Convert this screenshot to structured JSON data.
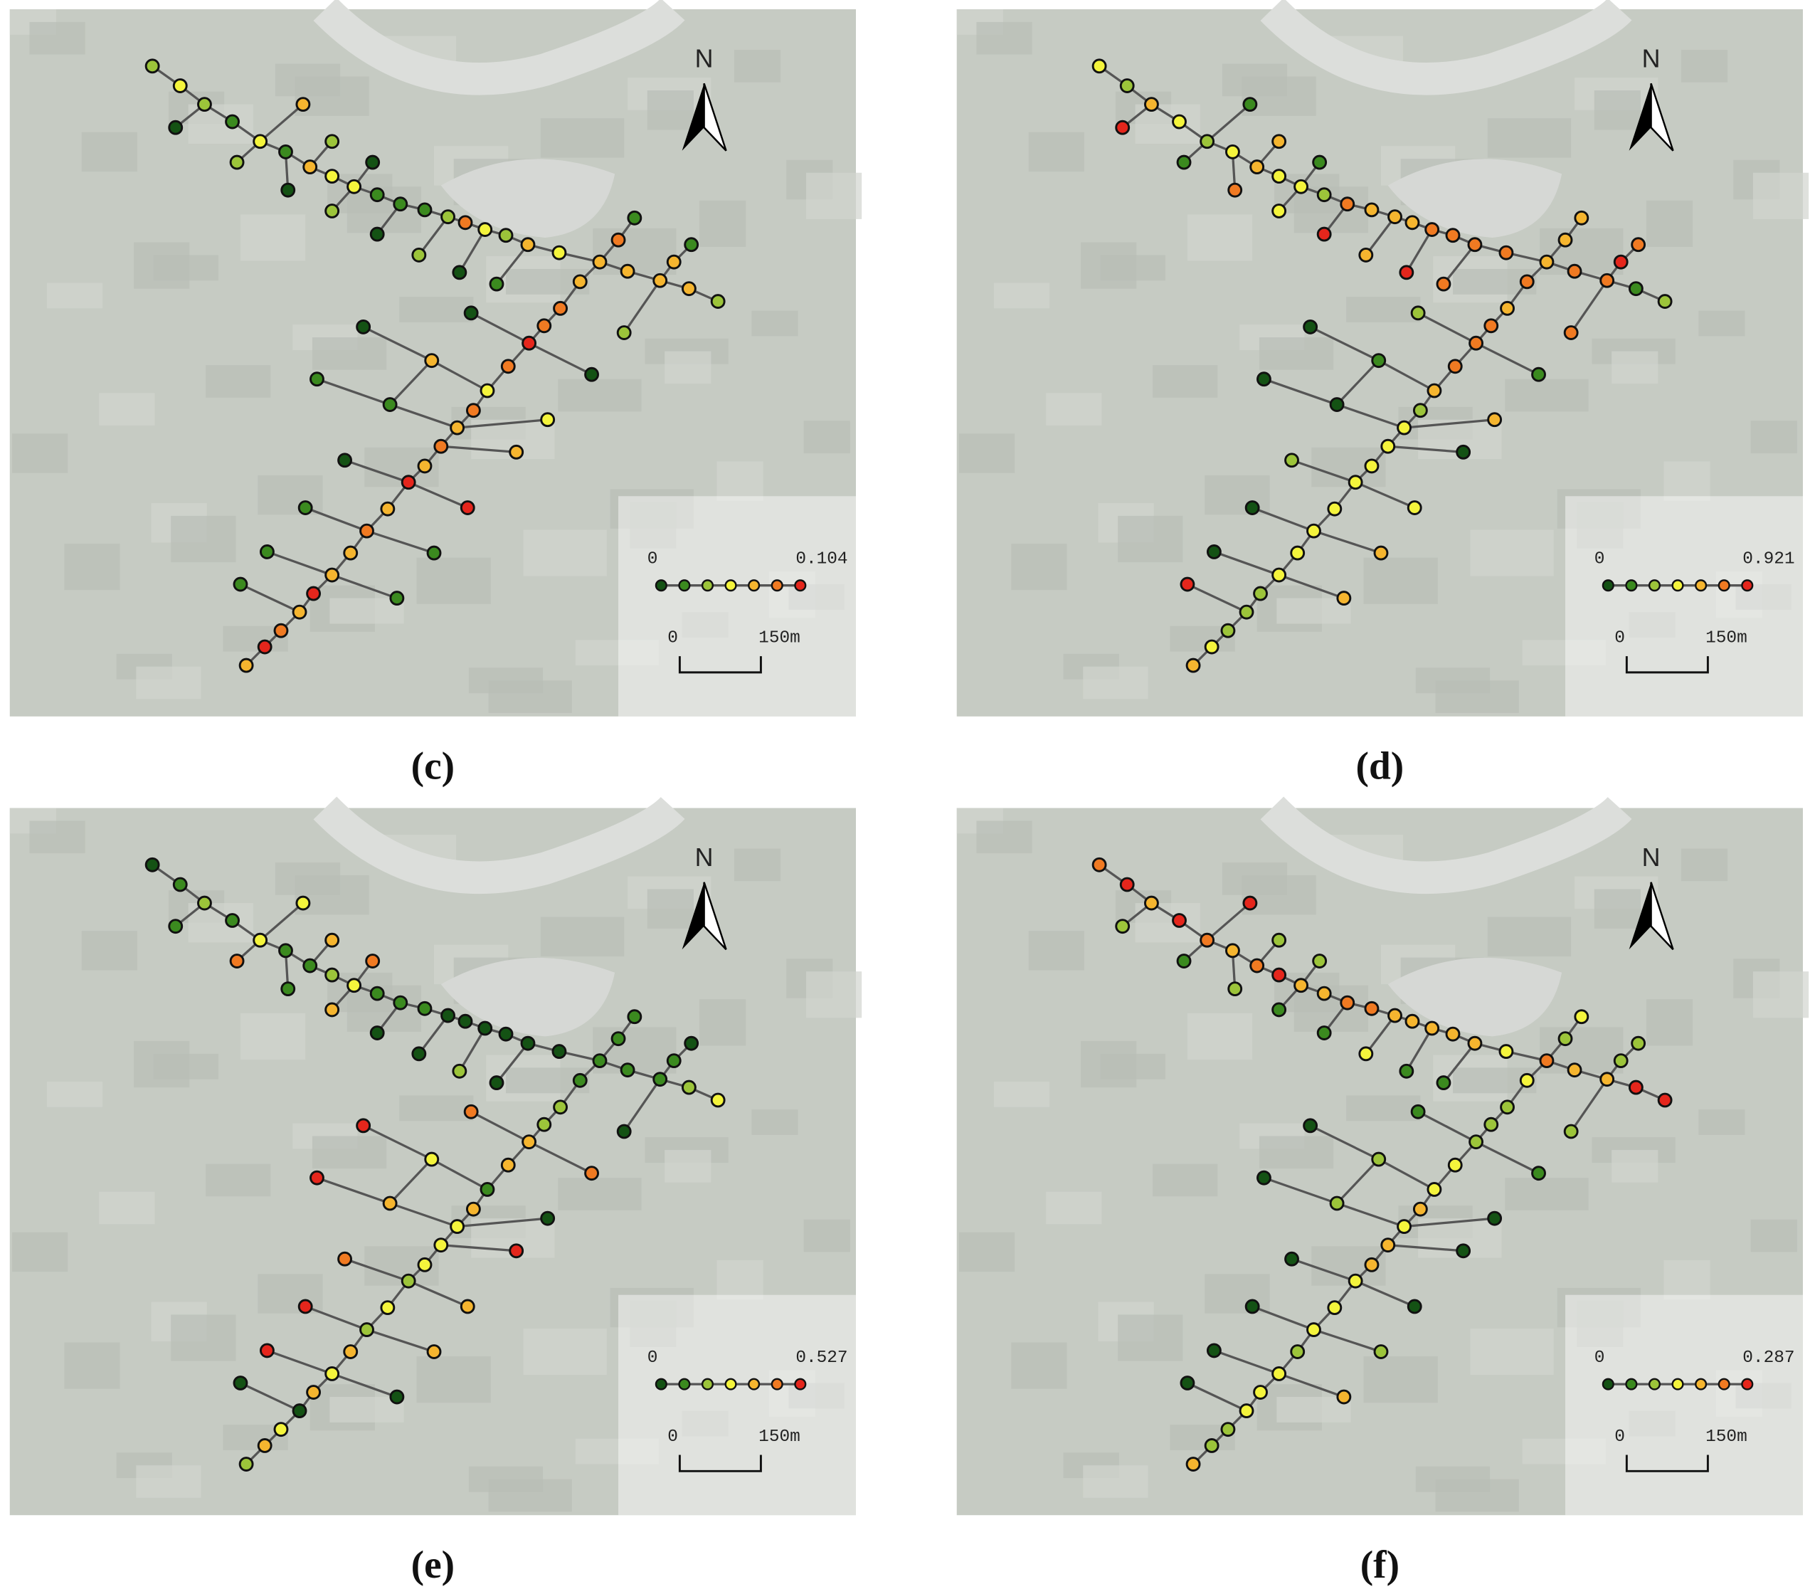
{
  "palette": [
    "#145214",
    "#3b8a1f",
    "#9cc43a",
    "#f4f43c",
    "#f5b52f",
    "#f07a22",
    "#e5261c"
  ],
  "panels": [
    {
      "label": "(c)",
      "north": "N",
      "legend_min": "0",
      "legend_max": "0.104",
      "scale_min": "0",
      "scale_max": "150m",
      "classes": [
        2,
        3,
        2,
        1,
        3,
        1,
        4,
        3,
        3,
        1,
        1,
        1,
        2,
        5,
        3,
        2,
        4,
        3,
        4,
        4,
        4,
        4,
        2,
        0,
        4,
        2,
        0,
        2,
        2,
        0,
        0,
        2,
        0,
        1,
        1,
        5,
        4,
        5,
        5,
        6,
        5,
        3,
        5,
        4,
        5,
        4,
        6,
        4,
        5,
        4,
        4,
        6,
        4,
        5,
        6,
        4,
        1,
        4,
        2,
        0,
        0,
        0,
        4,
        1,
        1,
        3,
        4,
        0,
        6,
        1,
        1,
        1,
        1,
        1
      ]
    },
    {
      "label": "(d)",
      "north": "N",
      "legend_min": "0",
      "legend_max": "0.921",
      "scale_min": "0",
      "scale_max": "150m",
      "classes": [
        3,
        2,
        4,
        3,
        2,
        3,
        4,
        3,
        3,
        2,
        5,
        4,
        4,
        4,
        5,
        5,
        5,
        5,
        4,
        5,
        5,
        1,
        2,
        6,
        1,
        1,
        5,
        4,
        3,
        1,
        6,
        4,
        6,
        5,
        4,
        4,
        5,
        4,
        5,
        5,
        5,
        4,
        2,
        3,
        3,
        3,
        3,
        3,
        3,
        3,
        3,
        2,
        2,
        2,
        3,
        4,
        5,
        6,
        5,
        2,
        1,
        0,
        1,
        0,
        0,
        4,
        0,
        2,
        3,
        0,
        4,
        0,
        4,
        6
      ]
    },
    {
      "label": "(e)",
      "north": "N",
      "legend_min": "0",
      "legend_max": "0.527",
      "scale_min": "0",
      "scale_max": "150m",
      "classes": [
        0,
        1,
        2,
        1,
        3,
        1,
        1,
        2,
        3,
        1,
        1,
        1,
        0,
        0,
        0,
        0,
        0,
        0,
        1,
        1,
        1,
        2,
        3,
        1,
        3,
        5,
        1,
        4,
        4,
        5,
        0,
        0,
        2,
        0,
        1,
        1,
        1,
        2,
        2,
        4,
        4,
        1,
        4,
        3,
        3,
        3,
        2,
        3,
        2,
        4,
        3,
        4,
        0,
        3,
        4,
        2,
        0,
        1,
        0,
        5,
        5,
        6,
        3,
        4,
        6,
        0,
        6,
        5,
        4,
        6,
        4,
        6,
        0,
        0
      ]
    },
    {
      "label": "(f)",
      "north": "N",
      "legend_min": "0",
      "legend_max": "0.287",
      "scale_min": "0",
      "scale_max": "150m",
      "classes": [
        5,
        6,
        4,
        6,
        5,
        4,
        5,
        6,
        4,
        4,
        5,
        5,
        4,
        4,
        4,
        4,
        4,
        3,
        5,
        4,
        4,
        6,
        6,
        2,
        6,
        1,
        2,
        2,
        1,
        2,
        1,
        3,
        1,
        1,
        3,
        2,
        3,
        2,
        2,
        2,
        3,
        3,
        4,
        3,
        4,
        4,
        3,
        3,
        3,
        2,
        3,
        3,
        3,
        2,
        2,
        4,
        2,
        2,
        2,
        1,
        1,
        0,
        2,
        2,
        0,
        0,
        0,
        0,
        0,
        0,
        2,
        0,
        4,
        0
      ]
    }
  ]
}
